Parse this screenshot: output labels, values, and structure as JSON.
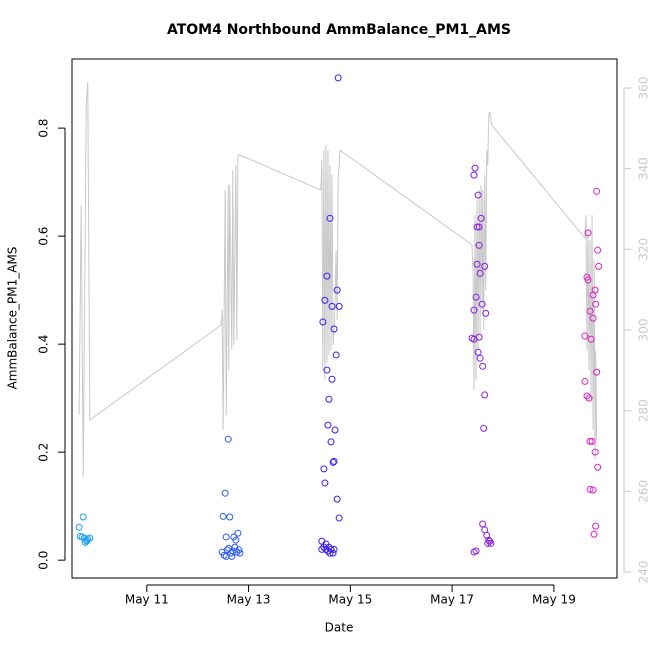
{
  "chart_data": {
    "type": "scatter",
    "title": "ATOM4 Northbound AmmBalance_PM1_AMS",
    "x_label": "Date",
    "y_label": "AmmBalance_PM1_AMS",
    "xlim": [
      9.53,
      20.24
    ],
    "xticks": [
      {
        "value": 11,
        "label": "May 11"
      },
      {
        "value": 13,
        "label": "May 13"
      },
      {
        "value": 15,
        "label": "May 15"
      },
      {
        "value": 17,
        "label": "May 17"
      },
      {
        "value": 19,
        "label": "May 19"
      }
    ],
    "ylim": [
      -0.033,
      0.928
    ],
    "yticks": [
      {
        "value": 0,
        "label": "0.0"
      },
      0.2,
      0.4,
      0.6,
      0.8
    ],
    "y2lim": [
      238.5,
      367.2
    ],
    "y2ticks": [
      240,
      260,
      280,
      300,
      320,
      340,
      360
    ],
    "series": [
      {
        "type": "line",
        "axis": "y2",
        "color": "#c8c8c8",
        "x": [
          9.67,
          9.71,
          9.75,
          9.81,
          9.84,
          9.88,
          12.46,
          12.48,
          12.5,
          12.54,
          12.56,
          12.6,
          12.61,
          12.63,
          12.67,
          12.69,
          12.71,
          12.75,
          12.77,
          12.79,
          12.83,
          14.42,
          14.44,
          14.46,
          14.48,
          14.5,
          14.52,
          14.54,
          14.56,
          14.58,
          14.6,
          14.62,
          14.64,
          14.66,
          14.68,
          14.7,
          14.72,
          14.74,
          14.76,
          14.8,
          17.39,
          17.41,
          17.43,
          17.45,
          17.47,
          17.49,
          17.51,
          17.53,
          17.55,
          17.57,
          17.59,
          17.6,
          17.62,
          17.64,
          17.66,
          17.68,
          17.7,
          17.72,
          17.74,
          17.78,
          19.61,
          19.63,
          19.65,
          19.67,
          19.69,
          19.71,
          19.73,
          19.75,
          19.77,
          19.79,
          19.81,
          19.82,
          19.84
        ],
        "values": [
          278.9,
          331.0,
          263.6,
          355.8,
          361.5,
          277.7,
          301.2,
          305.0,
          275.2,
          334.7,
          278.9,
          336.0,
          290.1,
          336.0,
          295.0,
          339.7,
          296.3,
          340.9,
          297.5,
          343.4,
          343.4,
          334.7,
          342.2,
          290.1,
          344.6,
          287.6,
          345.9,
          291.8,
          344.6,
          293.8,
          340.9,
          295.0,
          338.4,
          296.3,
          300.0,
          307.4,
          319.8,
          302.5,
          337.2,
          344.6,
          321.1,
          314.9,
          285.1,
          328.5,
          287.6,
          332.2,
          295.0,
          334.7,
          298.8,
          336.0,
          305.0,
          334.7,
          300.0,
          338.4,
          309.9,
          344.6,
          340.9,
          353.3,
          354.1,
          350.8,
          322.8,
          328.5,
          295.0,
          324.8,
          290.1,
          322.3,
          282.6,
          328.5,
          275.2,
          317.4,
          267.8,
          295.0,
          272.7
        ]
      },
      {
        "type": "scatter",
        "color": "#1fa0f5",
        "x": [
          9.67,
          9.75,
          9.69,
          9.77,
          9.81,
          9.84,
          9.88,
          9.79,
          9.73,
          9.82
        ],
        "values": [
          0.061,
          0.08,
          0.044,
          0.041,
          0.037,
          0.039,
          0.041,
          0.033,
          0.043,
          0.035
        ]
      },
      {
        "type": "scatter",
        "color": "#2a5cf0",
        "x": [
          12.6,
          12.54,
          12.5,
          12.63,
          12.56,
          12.71,
          12.79,
          12.75,
          12.48,
          12.52,
          12.58,
          12.61,
          12.65,
          12.69,
          12.73,
          12.77,
          12.81,
          12.56,
          12.67,
          12.83
        ],
        "values": [
          0.224,
          0.124,
          0.081,
          0.08,
          0.043,
          0.043,
          0.05,
          0.037,
          0.015,
          0.009,
          0.019,
          0.022,
          0.013,
          0.017,
          0.024,
          0.015,
          0.019,
          0.007,
          0.007,
          0.013
        ]
      },
      {
        "type": "scatter",
        "color": "#3a1ff0",
        "x": [
          14.76,
          14.6,
          14.54,
          14.5,
          14.64,
          14.74,
          14.78,
          14.46,
          14.68,
          14.72,
          14.54,
          14.64,
          14.58,
          14.56,
          14.7,
          14.62,
          14.66,
          14.68,
          14.48,
          14.5,
          14.74,
          14.78,
          14.44,
          14.52,
          14.58,
          14.48,
          14.44,
          14.56,
          14.62,
          14.66,
          14.6,
          14.68,
          14.52
        ],
        "values": [
          0.893,
          0.633,
          0.526,
          0.481,
          0.47,
          0.5,
          0.47,
          0.441,
          0.428,
          0.38,
          0.352,
          0.335,
          0.298,
          0.25,
          0.241,
          0.219,
          0.181,
          0.183,
          0.169,
          0.143,
          0.113,
          0.078,
          0.035,
          0.03,
          0.024,
          0.024,
          0.02,
          0.017,
          0.02,
          0.013,
          0.013,
          0.02,
          0.02
        ]
      },
      {
        "type": "scatter",
        "color": "#8a1fe0",
        "x": [
          17.45,
          17.43,
          17.51,
          17.49,
          17.53,
          17.57,
          17.53,
          17.49,
          17.55,
          17.64,
          17.47,
          17.59,
          17.43,
          17.66,
          17.39,
          17.43,
          17.53,
          17.51,
          17.55,
          17.6,
          17.64,
          17.62,
          17.6,
          17.64,
          17.68,
          17.72,
          17.7,
          17.74,
          17.76,
          17.47,
          17.43
        ],
        "values": [
          0.726,
          0.713,
          0.676,
          0.617,
          0.617,
          0.633,
          0.583,
          0.548,
          0.531,
          0.544,
          0.487,
          0.474,
          0.463,
          0.457,
          0.411,
          0.409,
          0.413,
          0.385,
          0.374,
          0.359,
          0.306,
          0.244,
          0.067,
          0.056,
          0.046,
          0.037,
          0.031,
          0.035,
          0.031,
          0.017,
          0.015
        ]
      },
      {
        "type": "scatter",
        "color": "#dd22c8",
        "x": [
          19.84,
          19.67,
          19.86,
          19.88,
          19.65,
          19.67,
          19.81,
          19.77,
          19.82,
          19.71,
          19.77,
          19.61,
          19.73,
          19.84,
          19.61,
          19.65,
          19.69,
          19.71,
          19.75,
          19.81,
          19.86,
          19.71,
          19.77,
          19.82,
          19.79
        ],
        "values": [
          0.683,
          0.606,
          0.574,
          0.544,
          0.524,
          0.519,
          0.5,
          0.491,
          0.474,
          0.461,
          0.448,
          0.415,
          0.409,
          0.348,
          0.331,
          0.304,
          0.3,
          0.22,
          0.22,
          0.2,
          0.172,
          0.131,
          0.13,
          0.063,
          0.048
        ]
      }
    ]
  }
}
